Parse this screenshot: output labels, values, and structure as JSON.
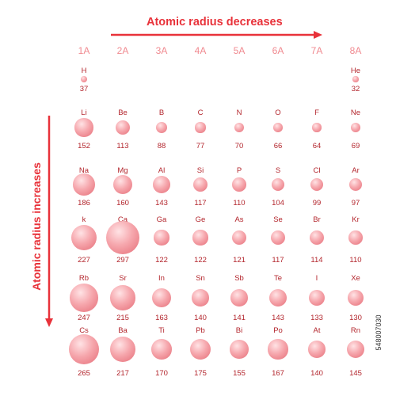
{
  "titles": {
    "top": "Atomic radius decreases",
    "left": "Atomic radius increases"
  },
  "colors": {
    "accent": "#e8323a",
    "group_label": "#f08a90",
    "text": "#b3262d",
    "sphere_light": "#ffe3e5",
    "sphere_dark": "#e56d77"
  },
  "groups": [
    "1A",
    "2A",
    "3A",
    "4A",
    "5A",
    "6A",
    "7A",
    "8A"
  ],
  "periods": [
    [
      {
        "symbol": "H",
        "radius": 37,
        "col": 0
      },
      {
        "symbol": "He",
        "radius": 32,
        "col": 7
      }
    ],
    [
      {
        "symbol": "Li",
        "radius": 152,
        "col": 0
      },
      {
        "symbol": "Be",
        "radius": 113,
        "col": 1
      },
      {
        "symbol": "B",
        "radius": 88,
        "col": 2
      },
      {
        "symbol": "C",
        "radius": 77,
        "col": 3
      },
      {
        "symbol": "N",
        "radius": 70,
        "col": 4
      },
      {
        "symbol": "O",
        "radius": 66,
        "col": 5
      },
      {
        "symbol": "F",
        "radius": 64,
        "col": 6
      },
      {
        "symbol": "Ne",
        "radius": 69,
        "col": 7
      }
    ],
    [
      {
        "symbol": "Na",
        "radius": 186,
        "col": 0
      },
      {
        "symbol": "Mg",
        "radius": 160,
        "col": 1
      },
      {
        "symbol": "Al",
        "radius": 143,
        "col": 2
      },
      {
        "symbol": "Si",
        "radius": 117,
        "col": 3
      },
      {
        "symbol": "P",
        "radius": 110,
        "col": 4
      },
      {
        "symbol": "S",
        "radius": 104,
        "col": 5
      },
      {
        "symbol": "Cl",
        "radius": 99,
        "col": 6
      },
      {
        "symbol": "Ar",
        "radius": 97,
        "col": 7
      }
    ],
    [
      {
        "symbol": "k",
        "radius": 227,
        "col": 0
      },
      {
        "symbol": "Ca",
        "radius": 297,
        "col": 1
      },
      {
        "symbol": "Ga",
        "radius": 122,
        "col": 2
      },
      {
        "symbol": "Ge",
        "radius": 122,
        "col": 3
      },
      {
        "symbol": "As",
        "radius": 121,
        "col": 4
      },
      {
        "symbol": "Se",
        "radius": 117,
        "col": 5
      },
      {
        "symbol": "Br",
        "radius": 114,
        "col": 6
      },
      {
        "symbol": "Kr",
        "radius": 110,
        "col": 7
      }
    ],
    [
      {
        "symbol": "Rb",
        "radius": 247,
        "col": 0
      },
      {
        "symbol": "Sr",
        "radius": 215,
        "col": 1
      },
      {
        "symbol": "In",
        "radius": 163,
        "col": 2
      },
      {
        "symbol": "Sn",
        "radius": 140,
        "col": 3
      },
      {
        "symbol": "Sb",
        "radius": 141,
        "col": 4
      },
      {
        "symbol": "Te",
        "radius": 143,
        "col": 5
      },
      {
        "symbol": "I",
        "radius": 133,
        "col": 6
      },
      {
        "symbol": "Xe",
        "radius": 130,
        "col": 7
      }
    ],
    [
      {
        "symbol": "Cs",
        "radius": 265,
        "col": 0
      },
      {
        "symbol": "Ba",
        "radius": 217,
        "col": 1
      },
      {
        "symbol": "Ti",
        "radius": 170,
        "col": 2
      },
      {
        "symbol": "Pb",
        "radius": 175,
        "col": 3
      },
      {
        "symbol": "Bi",
        "radius": 155,
        "col": 4
      },
      {
        "symbol": "Po",
        "radius": 167,
        "col": 5
      },
      {
        "symbol": "At",
        "radius": 140,
        "col": 6
      },
      {
        "symbol": "Rn",
        "radius": 145,
        "col": 7
      }
    ]
  ],
  "watermark": "548007030"
}
